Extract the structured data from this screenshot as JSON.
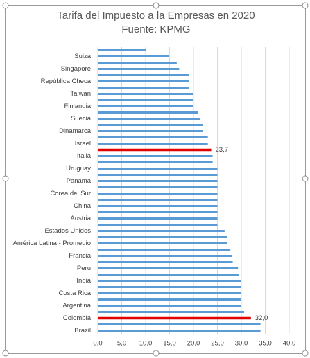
{
  "chart_data": {
    "type": "barh",
    "title": "Tarifa del Impuesto a la Empresas en 2020",
    "subtitle": "Fuente: KPMG",
    "categories": [
      null,
      "Suiza",
      null,
      "Singapore",
      null,
      "República Checa",
      null,
      "Taiwan",
      null,
      "Finlandia",
      null,
      "Suecia",
      null,
      "Dinamarca",
      null,
      "Israel",
      null,
      "Italia",
      null,
      "Uruguay",
      null,
      "Panama",
      null,
      "Corea del Sur",
      null,
      "China",
      null,
      "Austria",
      null,
      "Estados Unidos",
      null,
      "América Latina - Promedio",
      null,
      "Francia",
      null,
      "Peru",
      null,
      "India",
      null,
      "Costa Rica",
      null,
      "Argentina",
      null,
      "Colombia",
      null,
      "Brazil"
    ],
    "values": [
      10,
      14.8,
      16.5,
      17,
      19,
      19,
      19,
      20,
      20,
      20,
      21,
      21.4,
      22,
      22,
      23,
      23,
      23.7,
      24,
      24,
      25,
      25,
      25,
      25,
      25,
      25,
      25,
      25,
      25,
      25,
      26.5,
      27,
      27,
      27.7,
      28,
      28.2,
      29.3,
      29.5,
      30,
      30,
      30,
      30,
      30,
      30.6,
      32,
      34,
      34
    ],
    "value_labels": [
      null,
      null,
      null,
      null,
      null,
      null,
      null,
      null,
      null,
      null,
      null,
      null,
      null,
      null,
      null,
      null,
      "23,7",
      null,
      null,
      null,
      null,
      null,
      null,
      null,
      null,
      null,
      null,
      null,
      null,
      null,
      null,
      null,
      null,
      null,
      null,
      null,
      null,
      null,
      null,
      null,
      null,
      null,
      null,
      "32,0",
      null,
      null
    ],
    "colors": [
      "#5b9bd5",
      "#5b9bd5",
      "#5b9bd5",
      "#5b9bd5",
      "#5b9bd5",
      "#5b9bd5",
      "#5b9bd5",
      "#5b9bd5",
      "#5b9bd5",
      "#5b9bd5",
      "#5b9bd5",
      "#5b9bd5",
      "#5b9bd5",
      "#5b9bd5",
      "#5b9bd5",
      "#5b9bd5",
      "#e00000",
      "#5b9bd5",
      "#5b9bd5",
      "#5b9bd5",
      "#5b9bd5",
      "#5b9bd5",
      "#5b9bd5",
      "#5b9bd5",
      "#5b9bd5",
      "#5b9bd5",
      "#5b9bd5",
      "#5b9bd5",
      "#5b9bd5",
      "#5b9bd5",
      "#5b9bd5",
      "#5b9bd5",
      "#5b9bd5",
      "#5b9bd5",
      "#5b9bd5",
      "#5b9bd5",
      "#5b9bd5",
      "#5b9bd5",
      "#5b9bd5",
      "#5b9bd5",
      "#5b9bd5",
      "#5b9bd5",
      "#5b9bd5",
      "#e00000",
      "#5b9bd5",
      "#5b9bd5"
    ],
    "xlim": [
      0,
      40
    ],
    "xticks": [
      {
        "value": 0,
        "label": "0,0"
      },
      {
        "value": 5,
        "label": "5,0"
      },
      {
        "value": 10,
        "label": "10,0"
      },
      {
        "value": 15,
        "label": "15,0"
      },
      {
        "value": 20,
        "label": "20,0"
      },
      {
        "value": 25,
        "label": "25,0"
      },
      {
        "value": 30,
        "label": "30,0"
      },
      {
        "value": 35,
        "label": "35,0"
      },
      {
        "value": 40,
        "label": "40,0"
      }
    ],
    "grid": true
  }
}
